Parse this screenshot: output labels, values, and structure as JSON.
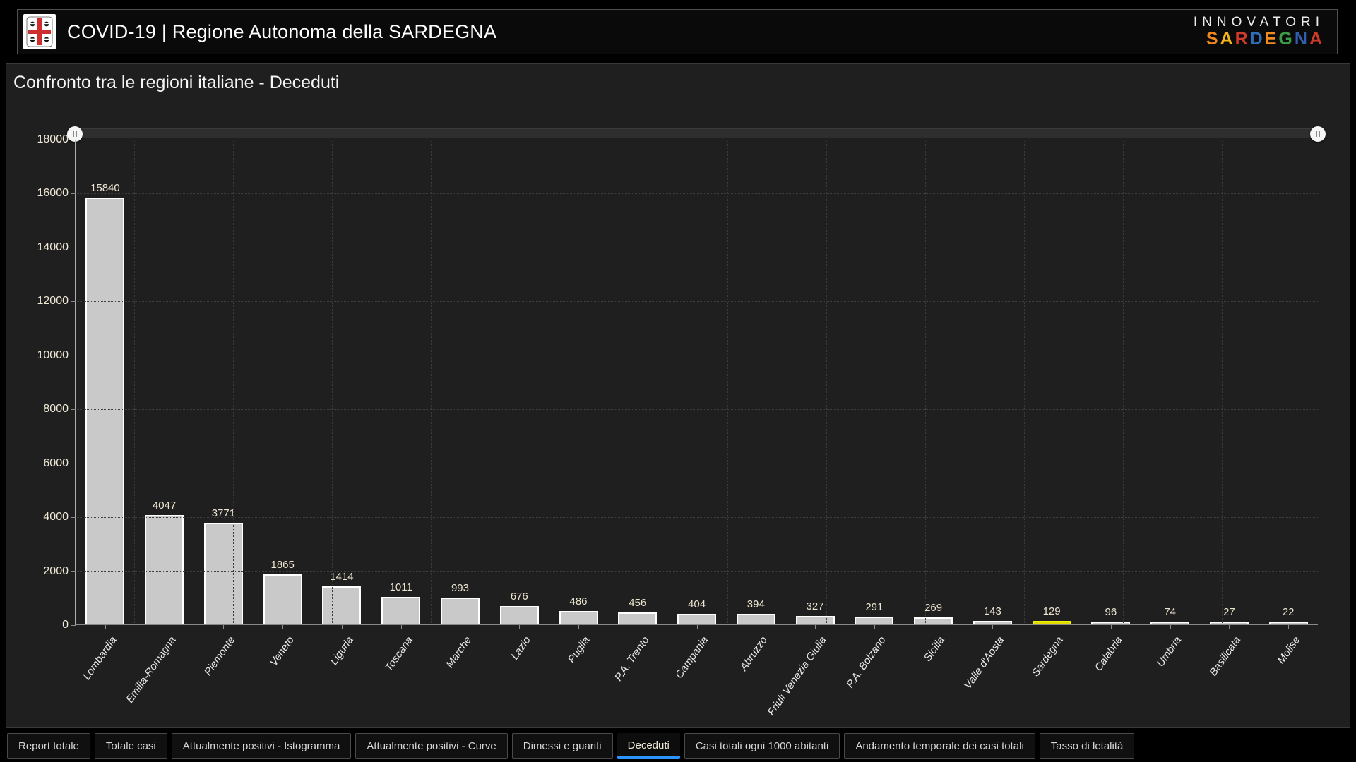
{
  "header": {
    "title": "COVID-19 | Regione Autonoma della SARDEGNA",
    "logo_icon": "sardinia-coat-of-arms",
    "brand_line1": "INNOVATORI",
    "brand_line2_letters": [
      {
        "ch": "S",
        "color": "#f0861f"
      },
      {
        "ch": "A",
        "color": "#f2b418"
      },
      {
        "ch": "R",
        "color": "#d03a2a"
      },
      {
        "ch": "D",
        "color": "#2f6db6"
      },
      {
        "ch": "E",
        "color": "#ef8b1f"
      },
      {
        "ch": "G",
        "color": "#3d9b47"
      },
      {
        "ch": "N",
        "color": "#2f5fae"
      },
      {
        "ch": "A",
        "color": "#cf3a27"
      }
    ]
  },
  "chart": {
    "title": "Confronto tra le regioni italiane - Deceduti"
  },
  "chart_data": {
    "type": "bar",
    "title": "Confronto tra le regioni italiane - Deceduti",
    "categories": [
      "Lombardia",
      "Emilia-Romagna",
      "Piemonte",
      "Veneto",
      "Liguria",
      "Toscana",
      "Marche",
      "Lazio",
      "Puglia",
      "P.A. Trento",
      "Campania",
      "Abruzzo",
      "Friuli Venezia Giulia",
      "P.A. Bolzano",
      "Sicilia",
      "Valle d'Aosta",
      "Sardegna",
      "Calabria",
      "Umbria",
      "Basilicata",
      "Molise"
    ],
    "values": [
      15840,
      4047,
      3771,
      1865,
      1414,
      1011,
      993,
      676,
      486,
      456,
      404,
      394,
      327,
      291,
      269,
      143,
      129,
      96,
      74,
      27,
      22
    ],
    "highlight_category": "Sardegna",
    "bar_color": "#c9c9c9",
    "bar_border_color": "#ffffff",
    "highlight_color": "#e3dc00",
    "highlight_border_color": "#f6f300",
    "ylim": [
      0,
      18000
    ],
    "yticks": [
      0,
      2000,
      4000,
      6000,
      8000,
      10000,
      12000,
      14000,
      16000,
      18000
    ],
    "grid": true,
    "xlabel": "",
    "ylabel": "",
    "legend": "none",
    "xlabel_rotation": -55
  },
  "slider": {
    "handle_icon": "grip-lines"
  },
  "tabs": {
    "active_index": 5,
    "items": [
      "Report totale",
      "Totale casi",
      "Attualmente positivi - Istogramma",
      "Attualmente positivi - Curve",
      "Dimessi e guariti",
      "Deceduti",
      "Casi totali ogni 1000 abitanti",
      "Andamento temporale dei casi totali",
      "Tasso di letalità"
    ]
  }
}
